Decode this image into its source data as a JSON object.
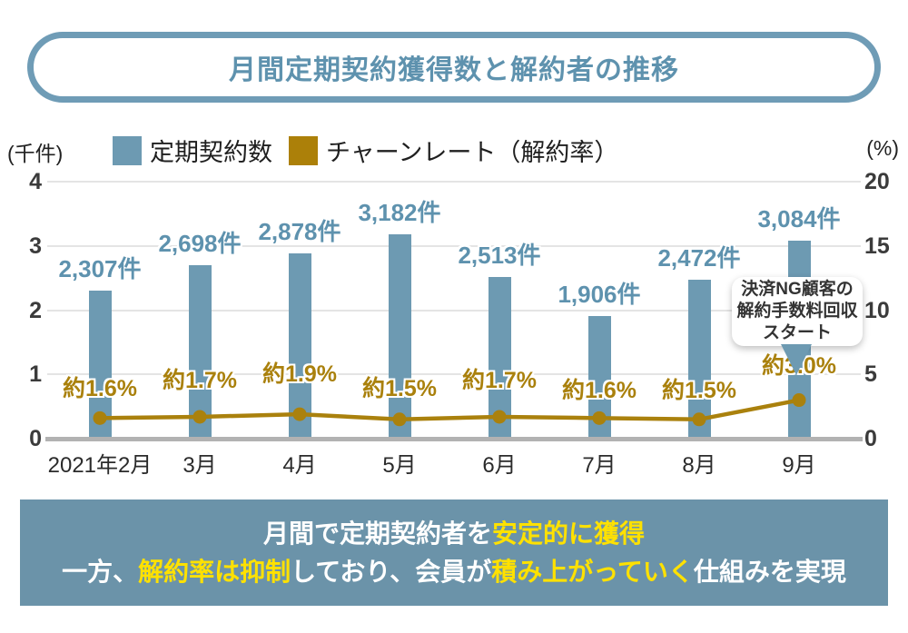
{
  "title": "月間定期契約獲得数と解約者の推移",
  "legend": {
    "series1": "定期契約数",
    "series2": "チャーンレート（解約率）"
  },
  "colors": {
    "bar_blue": "#6d9ab2",
    "accent_gold": "#aa810d",
    "banner_blue": "#6b93a9",
    "title_blue": "#5e92ae",
    "highlight_yellow": "#ffe100"
  },
  "chart_data": {
    "type": "combo bar+line",
    "categories": [
      "2021年2月",
      "3月",
      "4月",
      "5月",
      "6月",
      "7月",
      "8月",
      "9月"
    ],
    "series": [
      {
        "name": "定期契約数",
        "type": "bar",
        "axis": "left",
        "unit": "件",
        "values": [
          2307,
          2698,
          2878,
          3182,
          2513,
          1906,
          2472,
          3084
        ],
        "labels": [
          "2,307件",
          "2,698件",
          "2,878件",
          "3,182件",
          "2,513件",
          "1,906件",
          "2,472件",
          "3,084件"
        ]
      },
      {
        "name": "チャーンレート（解約率）",
        "type": "line",
        "axis": "right",
        "unit": "%",
        "values": [
          1.6,
          1.7,
          1.9,
          1.5,
          1.7,
          1.6,
          1.5,
          3.0
        ],
        "labels": [
          "約1.6%",
          "約1.7%",
          "約1.9%",
          "約1.5%",
          "約1.7%",
          "約1.6%",
          "約1.5%",
          "約3.0%"
        ]
      }
    ],
    "left_axis": {
      "label": "(千件)",
      "ticks": [
        0,
        1,
        2,
        3,
        4
      ],
      "range": [
        0,
        4
      ]
    },
    "right_axis": {
      "label": "(%)",
      "ticks": [
        0,
        5,
        10,
        15,
        20
      ],
      "range": [
        0,
        20
      ]
    },
    "grid": true,
    "legend_position": "top"
  },
  "callout": {
    "lines": [
      "決済NG顧客の",
      "解約手数料回収",
      "スタート"
    ]
  },
  "summary": {
    "line1": [
      {
        "text": "月間で定期契約者を",
        "highlight": false
      },
      {
        "text": "安定的に獲得",
        "highlight": true
      }
    ],
    "line2": [
      {
        "text": "一方、",
        "highlight": false
      },
      {
        "text": "解約率は抑制",
        "highlight": true
      },
      {
        "text": "しており、会員が",
        "highlight": false
      },
      {
        "text": "積み上がっていく",
        "highlight": true
      },
      {
        "text": "仕組みを実現",
        "highlight": false
      }
    ]
  }
}
